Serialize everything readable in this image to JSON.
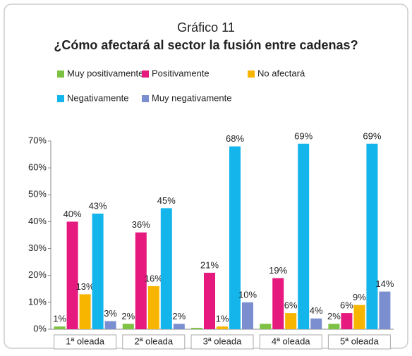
{
  "chart_data": {
    "type": "bar",
    "title": "Gráfico 11",
    "subtitle": "¿Cómo afectará al sector la fusión entre cadenas?",
    "categories": [
      "1ª oleada",
      "2ª oleada",
      "3ª oleada",
      "4ª oleada",
      "5ª oleada"
    ],
    "series": [
      {
        "name": "Muy positivamente",
        "color": "#7dc242",
        "values": [
          1,
          2,
          0.5,
          2,
          2
        ],
        "value_labels": [
          "1%",
          "2%",
          null,
          null,
          "2%"
        ]
      },
      {
        "name": "Positivamente",
        "color": "#e6197e",
        "values": [
          40,
          36,
          21,
          19,
          6
        ],
        "value_labels": [
          "40%",
          "36%",
          "21%",
          "19%",
          "6%"
        ]
      },
      {
        "name": "No afectará",
        "color": "#f7b500",
        "values": [
          13,
          16,
          1,
          6,
          9
        ],
        "value_labels": [
          "13%",
          "16%",
          "1%",
          "6%",
          "9%"
        ]
      },
      {
        "name": "Negativamente",
        "color": "#13b5ea",
        "values": [
          43,
          45,
          68,
          69,
          69
        ],
        "value_labels": [
          "43%",
          "45%",
          "68%",
          "69%",
          "69%"
        ]
      },
      {
        "name": "Muy negativamente",
        "color": "#7b8fd0",
        "values": [
          3,
          2,
          10,
          4,
          14
        ],
        "value_labels": [
          "3%",
          "2%",
          "10%",
          "4%",
          "14%"
        ]
      }
    ],
    "ylim": [
      0,
      70
    ],
    "yticks": [
      {
        "value": 0,
        "label": "0%"
      },
      {
        "value": 10,
        "label": "10%"
      },
      {
        "value": 20,
        "label": "20%"
      },
      {
        "value": 30,
        "label": "30%"
      },
      {
        "value": 40,
        "label": "40%"
      },
      {
        "value": 50,
        "label": "50%"
      },
      {
        "value": 60,
        "label": "60%"
      },
      {
        "value": 70,
        "label": "70%"
      }
    ],
    "grid": false
  }
}
